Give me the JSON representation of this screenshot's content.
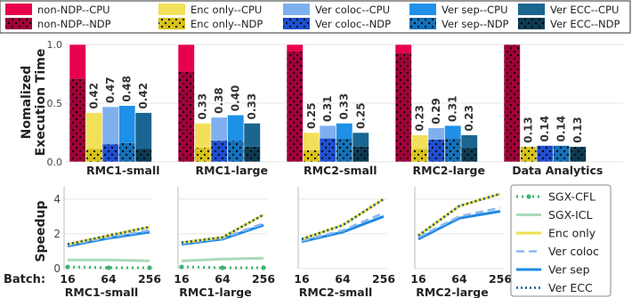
{
  "chart_data": [
    {
      "type": "bar",
      "title": "",
      "ylabel_lines": [
        "Nomalized",
        "Execution Time"
      ],
      "ylim": [
        0,
        1.0
      ],
      "yticks": [
        "0.0",
        "0.5",
        "1.0"
      ],
      "legend_position": "top",
      "groups": [
        "RMC1-small",
        "RMC1-large",
        "RMC2-small",
        "RMC2-large",
        "Data Analytics"
      ],
      "series": [
        {
          "name": "non-NDP--CPU",
          "color": "#e8004c",
          "hatch": false
        },
        {
          "name": "non-NDP--NDP",
          "color": "#a1003a",
          "hatch": true
        },
        {
          "name": "Enc only--CPU",
          "color": "#f3e05a",
          "hatch": false
        },
        {
          "name": "Enc only--NDP",
          "color": "#d7c21a",
          "hatch": true
        },
        {
          "name": "Ver coloc--CPU",
          "color": "#7fb0ee",
          "hatch": false
        },
        {
          "name": "Ver coloc--NDP",
          "color": "#1f4fcf",
          "hatch": true
        },
        {
          "name": "Ver sep--CPU",
          "color": "#1e90e8",
          "hatch": false
        },
        {
          "name": "Ver sep--NDP",
          "color": "#1570b8",
          "hatch": true
        },
        {
          "name": "Ver ECC--CPU",
          "color": "#1a6690",
          "hatch": false
        },
        {
          "name": "Ver ECC--NDP",
          "color": "#0d3b52",
          "hatch": true
        }
      ],
      "stacks": [
        {
          "label": "non-NDP",
          "values": [
            [
              0.29,
              0.71
            ],
            [
              0.23,
              0.77
            ],
            [
              0.06,
              0.94
            ],
            [
              0.07,
              0.93
            ],
            [
              0.0,
              1.0
            ]
          ]
        },
        {
          "label": "Enc only",
          "values": [
            [
              0.31,
              0.11
            ],
            [
              0.21,
              0.12
            ],
            [
              0.15,
              0.1
            ],
            [
              0.12,
              0.11
            ],
            [
              0.0,
              0.13
            ]
          ]
        },
        {
          "label": "Ver coloc",
          "values": [
            [
              0.32,
              0.15
            ],
            [
              0.2,
              0.18
            ],
            [
              0.11,
              0.2
            ],
            [
              0.1,
              0.19
            ],
            [
              0.0,
              0.14
            ]
          ]
        },
        {
          "label": "Ver sep",
          "values": [
            [
              0.32,
              0.16
            ],
            [
              0.22,
              0.18
            ],
            [
              0.13,
              0.2
            ],
            [
              0.11,
              0.2
            ],
            [
              0.0,
              0.14
            ]
          ]
        },
        {
          "label": "Ver ECC",
          "values": [
            [
              0.31,
              0.11
            ],
            [
              0.2,
              0.13
            ],
            [
              0.12,
              0.13
            ],
            [
              0.11,
              0.12
            ],
            [
              0.0,
              0.13
            ]
          ]
        }
      ],
      "data_labels": [
        [
          "0.42",
          "0.47",
          "0.48",
          "0.42"
        ],
        [
          "0.33",
          "0.38",
          "0.40",
          "0.33"
        ],
        [
          "0.25",
          "0.31",
          "0.33",
          "0.25"
        ],
        [
          "0.23",
          "0.29",
          "0.31",
          "0.23"
        ],
        [
          "0.13",
          "0.14",
          "0.14",
          "0.13"
        ]
      ]
    },
    {
      "type": "line",
      "ylabel": "Speedup",
      "ylim": [
        0,
        4.5
      ],
      "yticks": [
        "0",
        "2",
        "4"
      ],
      "x_prefix": "Batch:",
      "x": [
        "16",
        "64",
        "256"
      ],
      "panels": [
        "RMC1-small",
        "RMC1-large",
        "RMC2-small",
        "RMC2-large"
      ],
      "legend_position": "right",
      "series": [
        {
          "name": "SGX-CFL",
          "color": "#3cb371",
          "dash": "dot-marker",
          "values": [
            [
              0.1,
              0.05,
              0.05
            ],
            [
              0.1,
              0.05,
              0.05
            ],
            [
              0,
              0,
              0
            ],
            [
              0,
              0,
              0
            ]
          ]
        },
        {
          "name": "SGX-ICL",
          "color": "#a8dbb8",
          "dash": "solid",
          "values": [
            [
              0.5,
              0.5,
              0.45
            ],
            [
              0.45,
              0.55,
              0.6
            ],
            [
              0,
              0,
              0
            ],
            [
              0,
              0,
              0
            ]
          ]
        },
        {
          "name": "Enc only",
          "color": "#f0df4a",
          "dash": "solid",
          "values": [
            [
              1.4,
              1.9,
              2.4
            ],
            [
              1.5,
              1.8,
              3.1
            ],
            [
              1.7,
              2.5,
              4.0
            ],
            [
              1.9,
              3.6,
              4.3
            ]
          ]
        },
        {
          "name": "Ver coloc",
          "color": "#8ab8ee",
          "dash": "dashed",
          "values": [
            [
              1.35,
              1.8,
              2.2
            ],
            [
              1.45,
              1.75,
              2.6
            ],
            [
              1.6,
              2.2,
              3.2
            ],
            [
              1.8,
              3.0,
              3.5
            ]
          ]
        },
        {
          "name": "Ver sep",
          "color": "#1e88e5",
          "dash": "solid",
          "values": [
            [
              1.3,
              1.75,
              2.1
            ],
            [
              1.4,
              1.7,
              2.5
            ],
            [
              1.55,
              2.1,
              3.0
            ],
            [
              1.7,
              2.9,
              3.3
            ]
          ]
        },
        {
          "name": "Ver ECC",
          "color": "#155a8a",
          "dash": "dotted",
          "values": [
            [
              1.4,
              1.9,
              2.4
            ],
            [
              1.5,
              1.8,
              3.1
            ],
            [
              1.7,
              2.5,
              4.0
            ],
            [
              1.9,
              3.6,
              4.3
            ]
          ]
        }
      ]
    }
  ]
}
